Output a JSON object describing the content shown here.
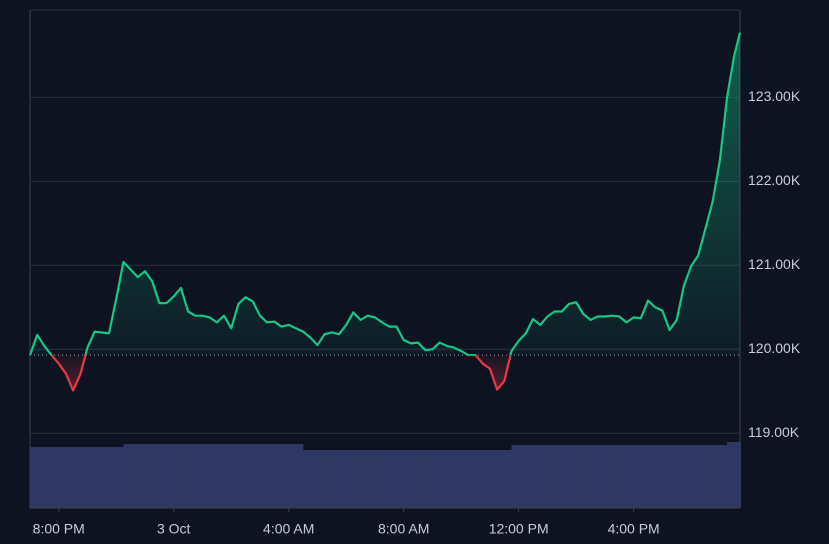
{
  "chart_data": {
    "type": "line",
    "x": [
      19,
      19.25,
      19.5,
      19.75,
      20,
      20.25,
      20.5,
      20.75,
      21,
      21.25,
      21.5,
      21.75,
      22,
      22.25,
      22.5,
      22.75,
      23,
      23.25,
      23.5,
      23.75,
      24,
      24.25,
      24.5,
      24.75,
      25,
      25.25,
      25.5,
      25.75,
      26,
      26.25,
      26.5,
      26.75,
      27,
      27.25,
      27.5,
      27.75,
      28,
      28.25,
      28.5,
      28.75,
      29,
      29.25,
      29.5,
      29.75,
      30,
      30.25,
      30.5,
      30.75,
      31,
      31.25,
      31.5,
      31.75,
      32,
      32.25,
      32.5,
      32.75,
      33,
      33.25,
      33.5,
      33.75,
      34,
      34.25,
      34.5,
      34.75,
      35,
      35.25,
      35.5,
      35.75,
      36,
      36.25,
      36.5,
      36.75,
      37,
      37.25,
      37.5,
      37.75,
      38,
      38.25,
      38.5,
      38.75,
      39,
      39.25,
      39.5,
      39.75,
      40,
      40.25,
      40.5,
      40.75,
      41,
      41.25,
      41.5,
      41.75,
      42,
      42.25,
      42.5,
      42.75,
      43,
      43.25,
      43.5,
      43.7
    ],
    "series": [
      {
        "color": "#16c784",
        "values": [
          119930,
          120170,
          120040,
          119930,
          119830,
          119710,
          119510,
          119700,
          120020,
          120210,
          120200,
          120190,
          120600,
          121040,
          120950,
          120860,
          120930,
          120810,
          120550,
          120550,
          120630,
          120730,
          120450,
          120400,
          120400,
          120380,
          120320,
          120400,
          120250,
          120540,
          120620,
          120570,
          120400,
          120320,
          120330,
          120270,
          120290,
          120250,
          120210,
          120140,
          120050,
          120180,
          120200,
          120180,
          120290,
          120440,
          120350,
          120400,
          120380,
          120320,
          120270,
          120270,
          120110,
          120070,
          120080,
          119990,
          120000,
          120080,
          120040,
          120020,
          119980,
          119930,
          119930,
          119830,
          119770,
          119520,
          119620,
          119980,
          120100,
          120190,
          120360,
          120290,
          120390,
          120450,
          120450,
          120540,
          120560,
          120420,
          120350,
          120390,
          120390,
          120400,
          120390,
          120320,
          120380,
          120370,
          120580,
          120500,
          120460,
          120230,
          120350,
          120760,
          120990,
          121120,
          121440,
          121760,
          122250,
          123000,
          123500,
          123770
        ]
      }
    ],
    "down_color": "#ea3943",
    "baseline": 119930,
    "volume": {
      "color": "#2f3862",
      "ylim": [
        0,
        100
      ],
      "values": [
        61,
        61,
        61,
        61,
        61,
        61,
        61,
        61,
        61,
        61,
        61,
        61,
        61,
        64,
        64,
        64,
        64,
        64,
        64,
        64,
        64,
        64,
        64,
        64,
        64,
        64,
        64,
        64,
        64,
        64,
        64,
        64,
        64,
        64,
        64,
        64,
        64,
        64,
        58,
        58,
        58,
        58,
        58,
        58,
        58,
        58,
        58,
        58,
        58,
        58,
        58,
        58,
        58,
        58,
        58,
        58,
        58,
        58,
        58,
        58,
        58,
        58,
        58,
        58,
        58,
        58,
        58,
        63,
        63,
        63,
        63,
        63,
        63,
        63,
        63,
        63,
        63,
        63,
        63,
        63,
        63,
        63,
        63,
        63,
        63,
        63,
        63,
        63,
        63,
        63,
        63,
        63,
        63,
        63,
        63,
        63,
        63,
        66,
        66,
        66
      ]
    },
    "xlim": [
      19,
      43.7
    ],
    "xticks": [
      {
        "value": 20,
        "label": "8:00 PM"
      },
      {
        "value": 24,
        "label": "3 Oct"
      },
      {
        "value": 28,
        "label": "4:00 AM"
      },
      {
        "value": 32,
        "label": "8:00 AM"
      },
      {
        "value": 36,
        "label": "12:00 PM"
      },
      {
        "value": 40,
        "label": "4:00 PM"
      }
    ],
    "ylim": [
      118110,
      124040
    ],
    "yticks": [
      {
        "value": 119000,
        "label": "119.00K"
      },
      {
        "value": 120000,
        "label": "120.00K"
      },
      {
        "value": 121000,
        "label": "121.00K"
      },
      {
        "value": 122000,
        "label": "122.00K"
      },
      {
        "value": 123000,
        "label": "123.00K"
      }
    ],
    "grid": true
  }
}
